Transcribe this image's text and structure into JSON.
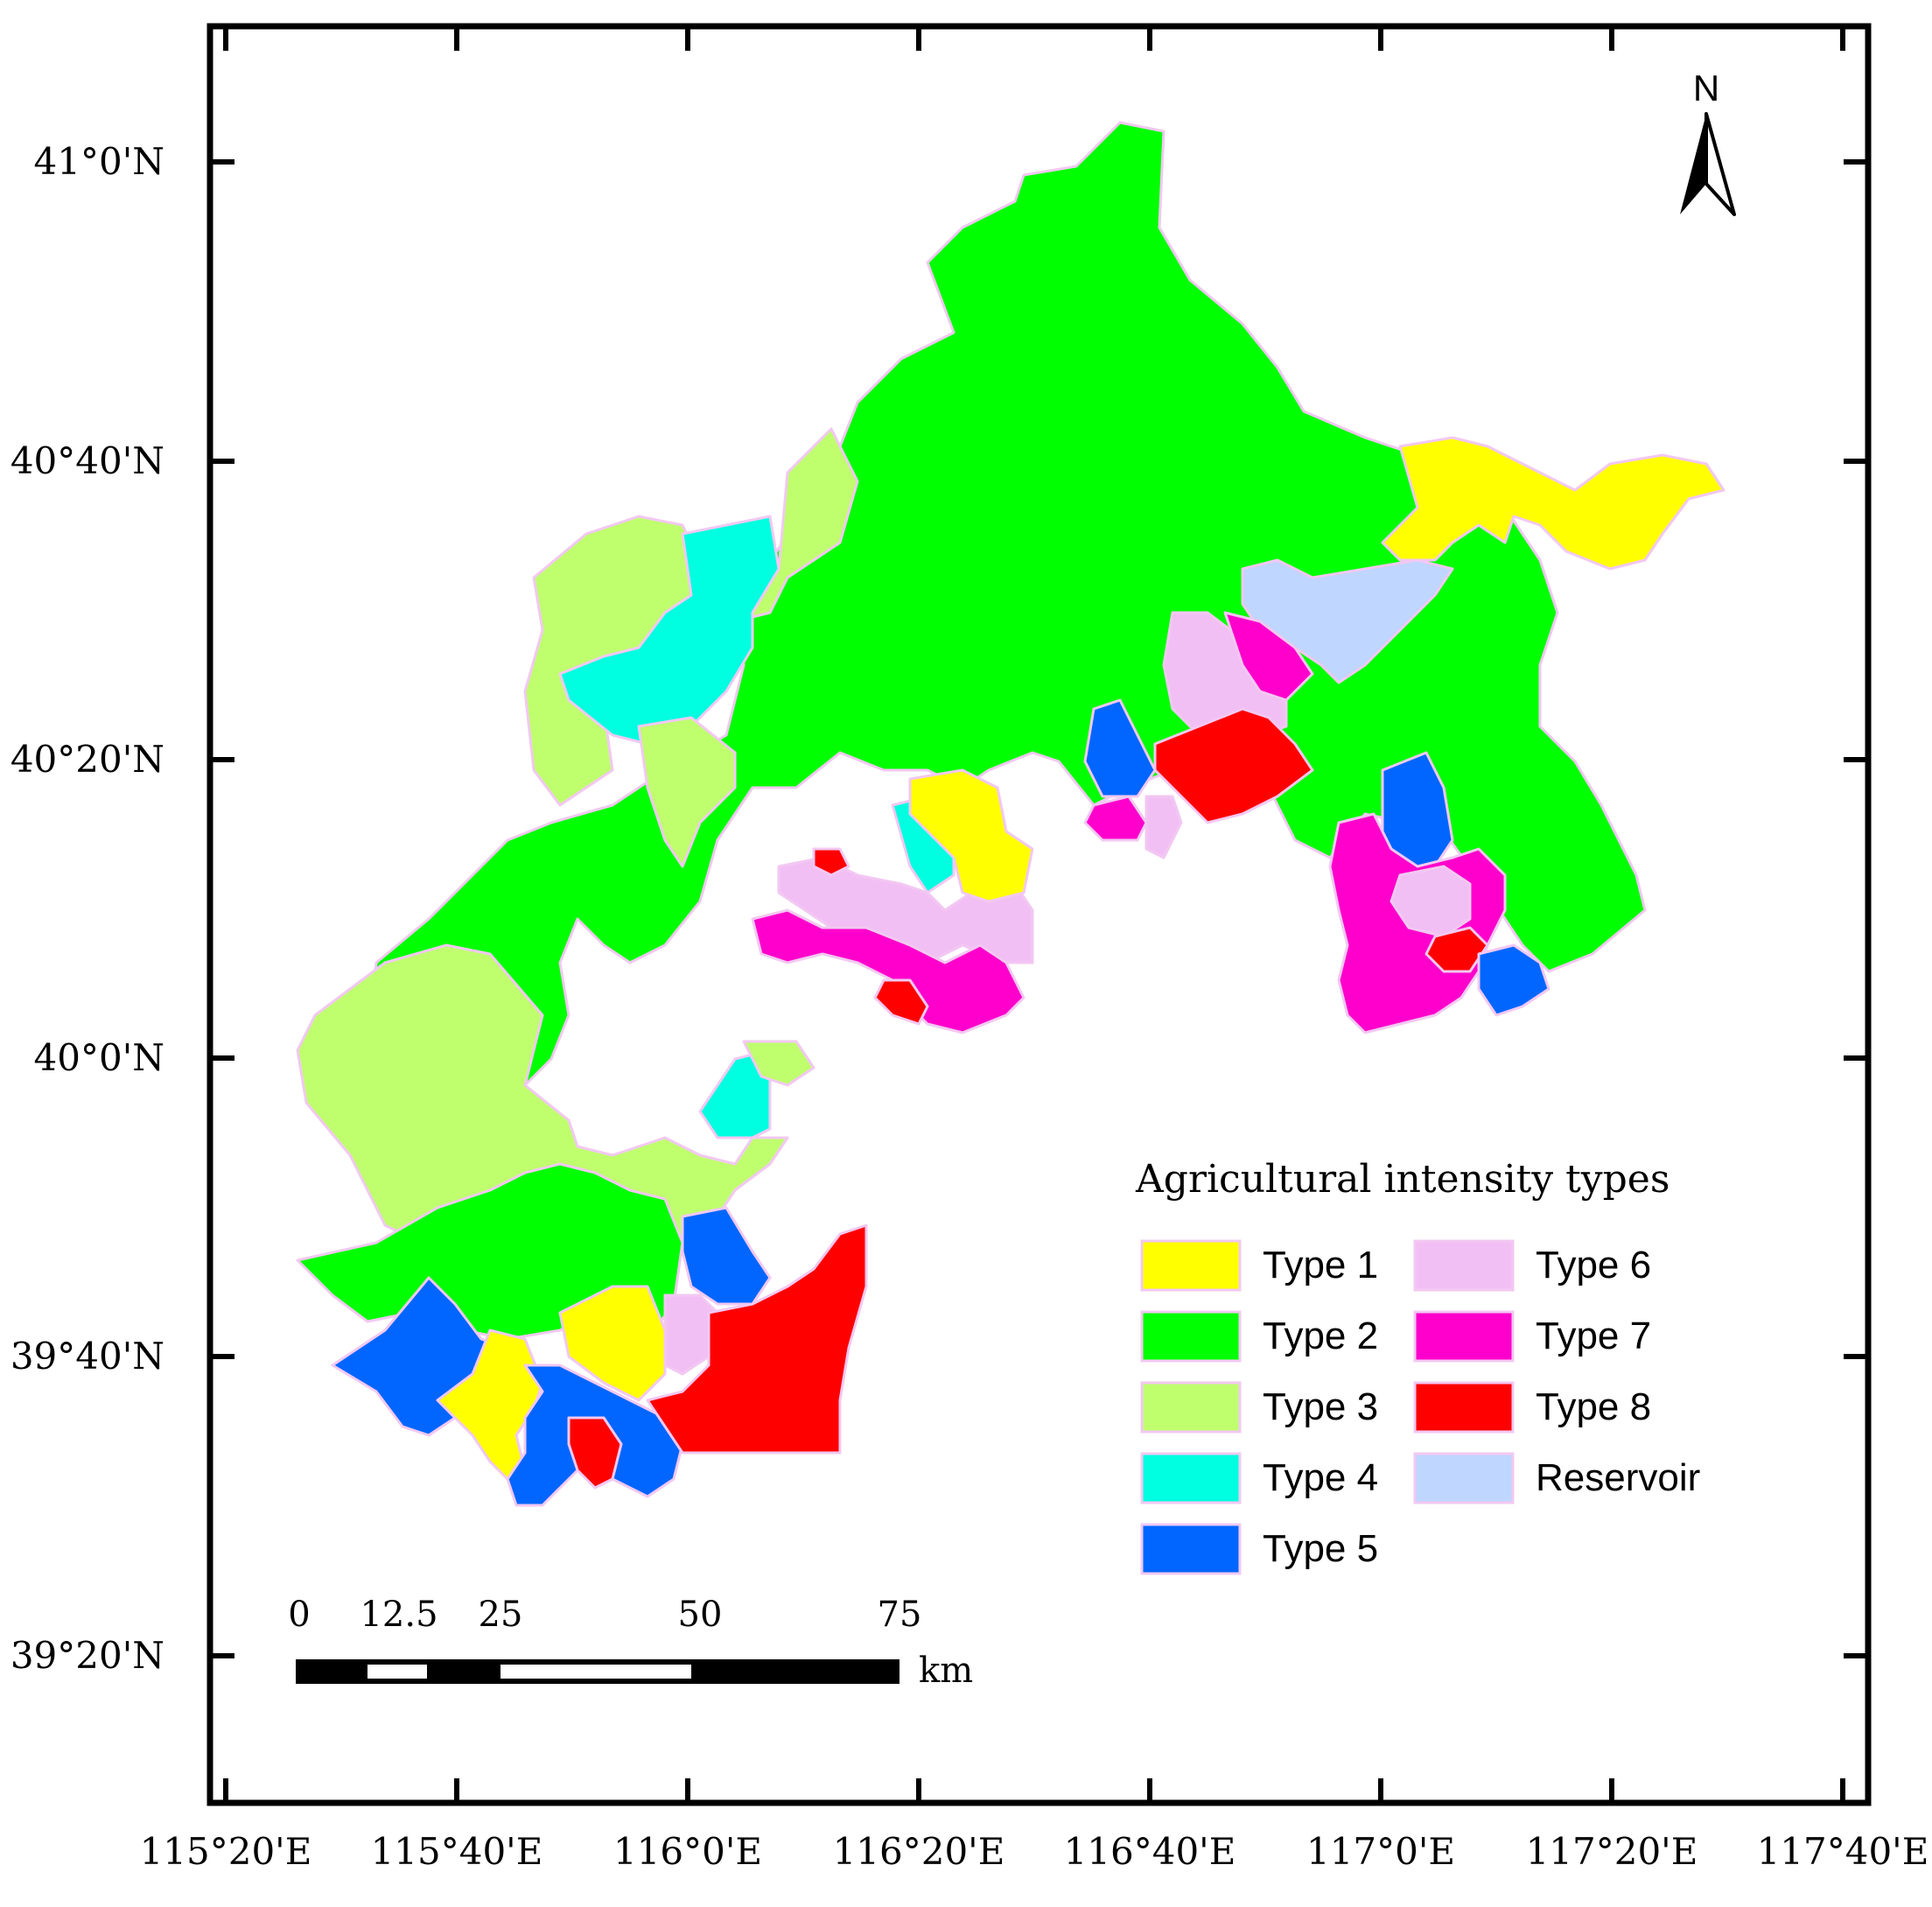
{
  "latitude_labels": [
    "41°0'N",
    "40°40'N",
    "40°20'N",
    "40°0'N",
    "39°40'N",
    "39°20'N"
  ],
  "longitude_labels": [
    "115°20'E",
    "115°40'E",
    "116°0'E",
    "116°20'E",
    "116°40'E",
    "117°0'E",
    "117°20'E",
    "117°40'E"
  ],
  "north_arrow": {
    "label": "N",
    "icon": "north-arrow-icon"
  },
  "legend": {
    "title": "Agricultural intensity types",
    "items": [
      {
        "label": "Type 1",
        "color": "#ffff00"
      },
      {
        "label": "Type 2",
        "color": "#00ff00"
      },
      {
        "label": "Type 3",
        "color": "#bfff6e"
      },
      {
        "label": "Type 4",
        "color": "#00ffe0"
      },
      {
        "label": "Type 5",
        "color": "#0066ff"
      },
      {
        "label": "Type 6",
        "color": "#f2bff5"
      },
      {
        "label": "Type 7",
        "color": "#ff00cc"
      },
      {
        "label": "Type 8",
        "color": "#ff0000"
      },
      {
        "label": "Reservoir",
        "color": "#bfd6ff"
      }
    ]
  },
  "scale_bar": {
    "ticks": [
      "0",
      "12.5",
      "25",
      "50",
      "75"
    ],
    "unit": "km"
  }
}
